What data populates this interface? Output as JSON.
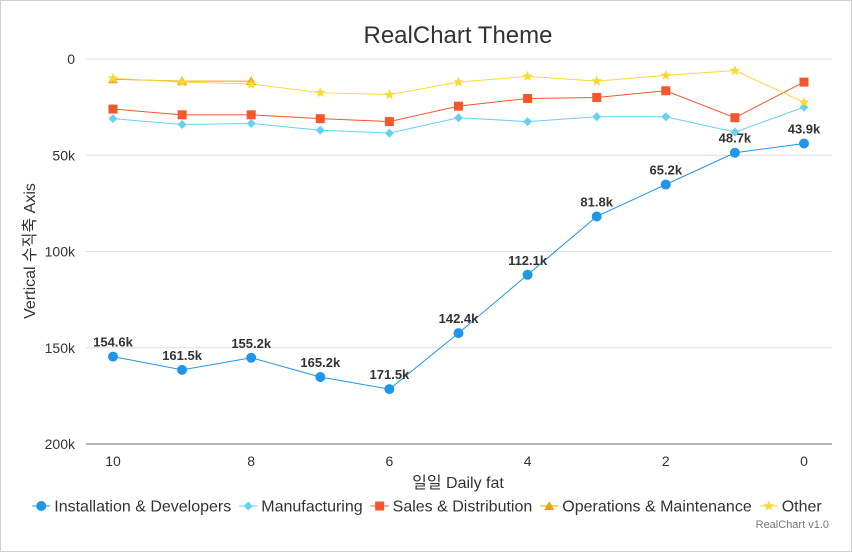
{
  "chart_data": {
    "type": "line",
    "title": "RealChart Theme",
    "xlabel": "일일 Daily fat",
    "ylabel": "Vertical 수직축 Axis",
    "x": [
      10,
      9,
      8,
      7,
      6,
      5,
      4,
      3,
      2,
      1,
      0
    ],
    "x_tick_labels": [
      "10",
      "8",
      "6",
      "4",
      "2",
      "0"
    ],
    "x_tick_values": [
      10,
      8,
      6,
      4,
      2,
      0
    ],
    "xlim": [
      10,
      0
    ],
    "y_reversed": true,
    "ylim": [
      0,
      200000
    ],
    "y_tick_values": [
      0,
      50000,
      100000,
      150000,
      200000
    ],
    "y_tick_labels": [
      "0",
      "50k",
      "100k",
      "150k",
      "200k"
    ],
    "grid": true,
    "legend_position": "bottom",
    "series": [
      {
        "name": "Installation & Developers",
        "color": "#1f96e9",
        "marker": "circle",
        "values": [
          154600,
          161500,
          155200,
          165200,
          171500,
          142400,
          112100,
          81800,
          65200,
          48700,
          43900
        ],
        "data_labels": [
          "154.6k",
          "161.5k",
          "155.2k",
          "165.2k",
          "171.5k",
          "142.4k",
          "112.1k",
          "81.8k",
          "65.2k",
          "48.7k",
          "43.9k"
        ]
      },
      {
        "name": "Manufacturing",
        "color": "#66d1f2",
        "marker": "diamond",
        "values": [
          31000,
          34000,
          33500,
          37000,
          38500,
          30500,
          32500,
          30000,
          30000,
          38000,
          25000
        ]
      },
      {
        "name": "Sales & Distribution",
        "color": "#f5572d",
        "marker": "square",
        "values": [
          26000,
          29000,
          29000,
          31000,
          32500,
          24500,
          20500,
          20000,
          16500,
          30500,
          12000
        ]
      },
      {
        "name": "Operations & Maintenance",
        "color": "#f0a400",
        "marker": "triangle",
        "values": [
          10500,
          11500,
          11500,
          null,
          null,
          null,
          null,
          null,
          null,
          null,
          null
        ]
      },
      {
        "name": "Other",
        "color": "#f8d93a",
        "marker": "star",
        "values": [
          10000,
          12000,
          13000,
          17500,
          18500,
          12000,
          9000,
          11500,
          8500,
          6000,
          22500
        ]
      }
    ]
  },
  "credit": "RealChart v1.0"
}
